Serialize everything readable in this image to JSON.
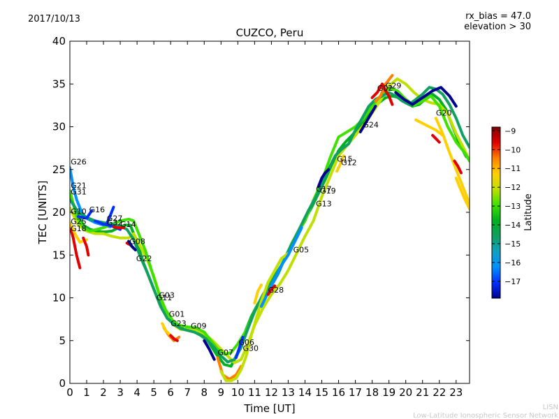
{
  "header": {
    "date": "2017/10/13",
    "rx_bias": "rx_bias = 47.0",
    "elevation": "elevation > 30"
  },
  "footer": {
    "line1": "LISN",
    "line2": "Low-Latitude Ionospheric Sensor Network"
  },
  "colors": {
    "ramp": [
      "#00008f",
      "#0030ff",
      "#0090ff",
      "#10a0c0",
      "#10a060",
      "#00b020",
      "#40e000",
      "#c0e000",
      "#ffd000",
      "#ff8000",
      "#e00000",
      "#800000"
    ]
  },
  "chart_data": {
    "type": "scatter",
    "title": "CUZCO, Peru",
    "xlabel": "Time [UT]",
    "ylabel": "TEC [UNITS]",
    "xlim": [
      0,
      23.8
    ],
    "ylim": [
      0,
      40
    ],
    "xticks": [
      0,
      1,
      2,
      3,
      4,
      5,
      6,
      7,
      8,
      9,
      10,
      11,
      12,
      13,
      14,
      15,
      16,
      17,
      18,
      19,
      20,
      21,
      22,
      23
    ],
    "yticks": [
      0,
      5,
      10,
      15,
      20,
      25,
      30,
      35,
      40
    ],
    "colorbar": {
      "label": "Latitude",
      "range": [
        -17.9,
        -8.8
      ],
      "ticks": [
        -9,
        -10,
        -11,
        -12,
        -13,
        -14,
        -15,
        -16,
        -17
      ]
    },
    "satellite_labels": [
      {
        "name": "G26",
        "x": 0.05,
        "y": 25.6
      },
      {
        "name": "G21",
        "x": 0.05,
        "y": 22.8
      },
      {
        "name": "G31",
        "x": 0.05,
        "y": 22.1
      },
      {
        "name": "G10",
        "x": 0.05,
        "y": 19.8
      },
      {
        "name": "G16",
        "x": 1.15,
        "y": 20.0
      },
      {
        "name": "G25",
        "x": 0.05,
        "y": 18.6
      },
      {
        "name": "G18",
        "x": 0.05,
        "y": 17.8
      },
      {
        "name": "G27",
        "x": 2.2,
        "y": 19.0
      },
      {
        "name": "G32",
        "x": 2.2,
        "y": 18.5
      },
      {
        "name": "G14",
        "x": 3.0,
        "y": 18.3
      },
      {
        "name": "G08",
        "x": 3.55,
        "y": 16.3
      },
      {
        "name": "G22",
        "x": 3.95,
        "y": 14.3
      },
      {
        "name": "G03",
        "x": 5.3,
        "y": 10.0
      },
      {
        "name": "G11",
        "x": 5.15,
        "y": 9.7
      },
      {
        "name": "G01",
        "x": 5.9,
        "y": 7.8
      },
      {
        "name": "G23",
        "x": 6.0,
        "y": 6.7
      },
      {
        "name": "G09",
        "x": 7.2,
        "y": 6.4
      },
      {
        "name": "G07",
        "x": 8.8,
        "y": 3.3
      },
      {
        "name": "G06",
        "x": 10.05,
        "y": 4.5
      },
      {
        "name": "G30",
        "x": 10.3,
        "y": 3.8
      },
      {
        "name": "G28",
        "x": 11.8,
        "y": 10.6
      },
      {
        "name": "G05",
        "x": 13.3,
        "y": 15.3
      },
      {
        "name": "G17",
        "x": 14.65,
        "y": 22.4
      },
      {
        "name": "G19",
        "x": 14.9,
        "y": 22.2
      },
      {
        "name": "G13",
        "x": 14.65,
        "y": 20.7
      },
      {
        "name": "G15",
        "x": 15.9,
        "y": 25.9
      },
      {
        "name": "G12",
        "x": 16.15,
        "y": 25.5
      },
      {
        "name": "G24",
        "x": 17.45,
        "y": 29.9
      },
      {
        "name": "G02",
        "x": 18.3,
        "y": 34.2
      },
      {
        "name": "G29",
        "x": 18.8,
        "y": 34.5
      },
      {
        "name": "G20",
        "x": 21.8,
        "y": 31.3
      }
    ],
    "series": [
      {
        "c": 10,
        "x": [
          0,
          0.2,
          0.4,
          0.6
        ],
        "y": [
          18.5,
          17,
          15,
          13.5
        ]
      },
      {
        "c": 8,
        "x": [
          0,
          0.3,
          0.6,
          1.0
        ],
        "y": [
          18.8,
          17.5,
          16.5,
          16.8
        ]
      },
      {
        "c": 2,
        "x": [
          0,
          0.2,
          0.4,
          0.7,
          1.0,
          1.5,
          2.0,
          2.4
        ],
        "y": [
          25.2,
          23,
          21.5,
          20,
          19.3,
          18.8,
          18.5,
          18.3
        ]
      },
      {
        "c": 5,
        "x": [
          0,
          0.4,
          0.8,
          1.2,
          1.6,
          2.0,
          2.5,
          3.0,
          3.3,
          3.6,
          4.0,
          4.4,
          4.8,
          5.2,
          5.6,
          6.0,
          6.4,
          6.8,
          7.2,
          7.6,
          8.0,
          8.4,
          8.8,
          9.2,
          9.6,
          10.0,
          10.4,
          10.8,
          11.2,
          11.6,
          12.0,
          12.4,
          12.8,
          13.2,
          13.6,
          14.0,
          14.4,
          14.8,
          15.2,
          15.6,
          16.0,
          16.4,
          16.8,
          17.2,
          17.6,
          18.0,
          18.4,
          18.8,
          19.2,
          19.6,
          20.0,
          20.4,
          20.8,
          21.2,
          21.6,
          22.0,
          22.4,
          22.8,
          23.2,
          23.6
        ],
        "y": [
          22,
          20,
          18.5,
          18,
          17.8,
          17.7,
          17.8,
          18.3,
          18.5,
          18.5,
          16.5,
          14,
          12,
          10,
          8.5,
          7.5,
          6.8,
          6.3,
          6.4,
          6.2,
          5.6,
          4.4,
          3.2,
          2.2,
          2.0,
          3.6,
          5.8,
          7.8,
          9.3,
          10.4,
          11.4,
          12.8,
          14.6,
          16.3,
          17.8,
          19.2,
          20.6,
          22.2,
          23.8,
          25.6,
          27.2,
          28.2,
          29.0,
          29.9,
          30.8,
          31.8,
          32.8,
          33.4,
          33.6,
          33.4,
          32.8,
          32.4,
          32.6,
          33.3,
          33.8,
          33.2,
          32.0,
          30.0,
          28.0,
          26.5
        ]
      },
      {
        "c": 7,
        "x": [
          0,
          0.5,
          1.0,
          1.5,
          2.0,
          2.5,
          3.0,
          3.5,
          3.8,
          4.2,
          4.6,
          5.0,
          5.4,
          5.8,
          6.2,
          6.6,
          7.0,
          7.5,
          8.0,
          8.5,
          9.0,
          9.4,
          9.8,
          10.2,
          10.6,
          11.0,
          11.5,
          12.0,
          12.5,
          13.0,
          13.5,
          14.0,
          14.5,
          15.0,
          15.5,
          16.0,
          16.5,
          17.0,
          17.5,
          18.0,
          18.5,
          19.0,
          19.5,
          20.0,
          20.5,
          21.0,
          21.5,
          22.0,
          22.5,
          23.0,
          23.5,
          23.8
        ],
        "y": [
          20.5,
          18.5,
          17.8,
          17.5,
          17.5,
          17.2,
          17.0,
          17.0,
          17.5,
          16.0,
          14.5,
          12.5,
          10.0,
          8.0,
          6.8,
          6.3,
          6.3,
          6.3,
          5.8,
          5.0,
          4.0,
          3.2,
          2.4,
          2.8,
          4.6,
          6.8,
          8.8,
          10.4,
          11.6,
          13.2,
          15.2,
          17.2,
          19.0,
          21.8,
          24.2,
          26.6,
          27.8,
          29.0,
          30.2,
          31.6,
          33.1,
          34.8,
          35.6,
          35.0,
          34.0,
          33.2,
          32.8,
          32.6,
          31.5,
          29.2,
          27.3,
          26.0
        ]
      },
      {
        "c": 6,
        "x": [
          0,
          0.4,
          0.8,
          1.2,
          1.6,
          2.0,
          2.5,
          3.0,
          3.5,
          3.8,
          4.1,
          4.5,
          4.9,
          5.3,
          5.7,
          6.1,
          6.5,
          7.0,
          7.5,
          8.0,
          8.4,
          8.8,
          9.2,
          9.6,
          10.0,
          10.5,
          11.0,
          11.5,
          12.0,
          12.5,
          13.0,
          13.5,
          14.0,
          14.5,
          15.0,
          15.5,
          16.0,
          16.5,
          17.0,
          17.5,
          18.0,
          18.5,
          19.0,
          19.5,
          20.0,
          20.5,
          21.0,
          21.5,
          22.0,
          22.5,
          23.0,
          23.5,
          23.8
        ],
        "y": [
          22.5,
          19.5,
          18.2,
          17.8,
          18.0,
          18.2,
          18.6,
          19.0,
          19.2,
          19.0,
          17.5,
          15.5,
          13.0,
          10.5,
          8.6,
          7.4,
          6.8,
          6.6,
          6.5,
          6.0,
          5.0,
          4.0,
          3.4,
          3.6,
          4.6,
          6.2,
          8.4,
          10.4,
          11.8,
          13.4,
          15.4,
          17.4,
          19.0,
          21.4,
          23.6,
          26.4,
          28.8,
          29.4,
          30.0,
          31.0,
          32.4,
          33.6,
          34.5,
          34.2,
          33.2,
          32.5,
          33.0,
          33.6,
          32.4,
          30.0,
          28.2,
          27.0,
          26.0
        ]
      },
      {
        "c": 4,
        "x": [
          0,
          0.5,
          1.0,
          1.5,
          2.0,
          2.5,
          3.0,
          3.4,
          3.8,
          4.2,
          4.6,
          5.0,
          5.4,
          5.8,
          6.2,
          6.6,
          7.0,
          7.4,
          7.8,
          8.2,
          8.6,
          9.0,
          9.4,
          9.8,
          10.2,
          10.6,
          11.0,
          11.4,
          11.8,
          12.2,
          12.6,
          13.0,
          13.4,
          13.8,
          14.2,
          14.6,
          15.0,
          15.4,
          15.8,
          16.2,
          16.6,
          17.0,
          17.4,
          17.8,
          18.2,
          18.6,
          19.0,
          19.4,
          19.8,
          20.2,
          20.6,
          21.0,
          21.4,
          21.8,
          22.2,
          22.6,
          23.0,
          23.4,
          23.8
        ],
        "y": [
          21.5,
          20.0,
          19.4,
          19.0,
          18.8,
          18.6,
          18.4,
          18.0,
          16.8,
          14.8,
          13.0,
          11.0,
          9.0,
          7.6,
          6.9,
          6.4,
          6.2,
          6.0,
          5.6,
          5.0,
          4.2,
          3.2,
          2.5,
          2.8,
          4.2,
          6.4,
          8.4,
          10.0,
          11.4,
          12.6,
          13.8,
          15.4,
          17.0,
          18.6,
          20.2,
          21.6,
          23.2,
          25.0,
          26.6,
          27.4,
          28.0,
          29.6,
          31.0,
          32.4,
          33.2,
          33.6,
          34.0,
          33.6,
          33.0,
          32.6,
          33.2,
          33.8,
          34.6,
          34.4,
          33.8,
          32.6,
          31.0,
          29.0,
          27.6
        ]
      },
      {
        "c": 0,
        "x": [
          19.4,
          19.9,
          20.4,
          21.0,
          21.6,
          22.1,
          22.6,
          23.0
        ],
        "y": [
          34.0,
          33.2,
          32.6,
          33.4,
          34.2,
          34.6,
          33.6,
          32.4
        ]
      },
      {
        "c": 1,
        "x": [
          0.5,
          1.0,
          1.3
        ],
        "y": [
          19.5,
          19.3,
          20.2
        ]
      },
      {
        "c": 1,
        "x": [
          2.2,
          2.4,
          2.6
        ],
        "y": [
          18.7,
          19.6,
          20.6
        ]
      },
      {
        "c": 0,
        "x": [
          8.0,
          8.3,
          8.6
        ],
        "y": [
          5.0,
          4.0,
          2.8
        ]
      },
      {
        "c": 1,
        "x": [
          9.9,
          10.1,
          10.3
        ],
        "y": [
          3.0,
          4.2,
          5.4
        ]
      },
      {
        "c": 9,
        "x": [
          5.6,
          5.9,
          6.2,
          6.5
        ],
        "y": [
          6.5,
          5.6,
          5.0,
          5.4
        ]
      },
      {
        "c": 8,
        "x": [
          5.5,
          5.7,
          6.0,
          6.3
        ],
        "y": [
          7.0,
          6.2,
          5.6,
          5.1
        ]
      },
      {
        "c": 10,
        "x": [
          6.0,
          6.2,
          6.4
        ],
        "y": [
          5.6,
          5.2,
          5.0
        ]
      },
      {
        "c": 9,
        "x": [
          8.8,
          9.1,
          9.5,
          9.9,
          10.2
        ],
        "y": [
          3.0,
          1.0,
          0.5,
          1.0,
          2.0
        ]
      },
      {
        "c": 7,
        "x": [
          9.0,
          9.3,
          9.6,
          9.9,
          10.2,
          10.5,
          10.8,
          11.1,
          11.4,
          11.8,
          12.2,
          12.6,
          13.0
        ],
        "y": [
          1.4,
          0.3,
          0.3,
          0.6,
          1.6,
          3.2,
          5.6,
          7.6,
          9.6,
          11.8,
          13.2,
          14.6,
          15.2
        ]
      },
      {
        "c": 2,
        "x": [
          11.4,
          11.8,
          12.2,
          12.6,
          13.0,
          13.4,
          13.8
        ],
        "y": [
          9.0,
          10.6,
          12.2,
          13.8,
          15.0,
          16.6,
          18.2
        ]
      },
      {
        "c": 8,
        "x": [
          11.0,
          11.2,
          11.4
        ],
        "y": [
          9.4,
          10.8,
          11.5
        ]
      },
      {
        "c": 10,
        "x": [
          18.0,
          18.3,
          18.6
        ],
        "y": [
          33.4,
          34.0,
          35.0
        ]
      },
      {
        "c": 9,
        "x": [
          18.2,
          18.5,
          18.8,
          19.2
        ],
        "y": [
          33.0,
          33.6,
          35.0,
          36.0
        ]
      },
      {
        "c": 10,
        "x": [
          18.6,
          18.8,
          19.0,
          19.2
        ],
        "y": [
          35.0,
          34.2,
          33.6,
          32.6
        ]
      },
      {
        "c": 8,
        "x": [
          15.9,
          16.1,
          16.3
        ],
        "y": [
          24.8,
          25.6,
          26.6
        ]
      },
      {
        "c": 0,
        "x": [
          14.8,
          15.0,
          15.2,
          15.4
        ],
        "y": [
          23.0,
          24.0,
          24.6,
          25.0
        ]
      },
      {
        "c": 0,
        "x": [
          17.3,
          17.6,
          17.9,
          18.2
        ],
        "y": [
          29.4,
          30.4,
          31.4,
          32.4
        ]
      },
      {
        "c": 8,
        "x": [
          20.6,
          21.0,
          21.4,
          21.8,
          22.2
        ],
        "y": [
          30.8,
          30.4,
          30.0,
          29.6,
          29.0
        ]
      },
      {
        "c": 10,
        "x": [
          21.6,
          21.8,
          22.0
        ],
        "y": [
          29.0,
          28.6,
          28.2
        ]
      },
      {
        "c": 8,
        "x": [
          21.8,
          22.2,
          22.6,
          23.0,
          23.4,
          23.8
        ],
        "y": [
          31.0,
          29.2,
          27.0,
          25.0,
          23.0,
          21.0
        ]
      },
      {
        "c": 10,
        "x": [
          22.9,
          23.1,
          23.3
        ],
        "y": [
          26.0,
          25.4,
          24.6
        ]
      },
      {
        "c": 8,
        "x": [
          23.0,
          23.2,
          23.5,
          23.8
        ],
        "y": [
          24.0,
          23.0,
          21.6,
          20.4
        ]
      },
      {
        "c": 10,
        "x": [
          11.8,
          12.0,
          12.2
        ],
        "y": [
          10.4,
          11.0,
          11.4
        ]
      },
      {
        "c": 10,
        "x": [
          3.4,
          3.6,
          3.8
        ],
        "y": [
          16.4,
          16.2,
          15.8
        ]
      },
      {
        "c": 0,
        "x": [
          3.5,
          3.7,
          3.9
        ],
        "y": [
          16.6,
          16.0,
          15.6
        ]
      },
      {
        "c": 10,
        "x": [
          0.8,
          1.0,
          1.1
        ],
        "y": [
          17.0,
          16.0,
          15.0
        ]
      },
      {
        "c": 1,
        "x": [
          1.5,
          2.0,
          2.5,
          3.0
        ],
        "y": [
          19.0,
          18.6,
          18.4,
          18.0
        ]
      },
      {
        "c": 10,
        "x": [
          2.6,
          2.9,
          3.2
        ],
        "y": [
          18.3,
          18.2,
          18.2
        ]
      }
    ]
  }
}
